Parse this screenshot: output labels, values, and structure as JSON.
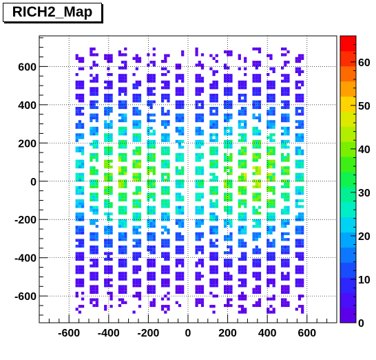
{
  "chart_data": {
    "type": "heatmap",
    "title": "RICH2_Map",
    "xlabel": "",
    "ylabel": "",
    "xlim": [
      -750,
      750
    ],
    "ylim": [
      -740,
      760
    ],
    "zlim": [
      0,
      66
    ],
    "grid": true,
    "x_ticks": [
      -600,
      -400,
      -200,
      0,
      200,
      400,
      600
    ],
    "y_ticks": [
      -600,
      -400,
      -200,
      0,
      200,
      400,
      600
    ],
    "color_ticks": [
      10,
      20,
      30,
      40,
      50,
      60
    ],
    "palette": [
      "#5c00ec",
      "#4a0ef8",
      "#2e26ff",
      "#1a4cff",
      "#0c78ff",
      "#00a6ff",
      "#00d2f4",
      "#00eec6",
      "#00f092",
      "#10f24e",
      "#3cf016",
      "#7af000",
      "#b2ee00",
      "#dcea00",
      "#ffd400",
      "#ffa000",
      "#ff6a00",
      "#ff2e00",
      "#ff0000"
    ],
    "layout": {
      "columns_per_side": 8,
      "column_spacing": 72,
      "inner_column_x": 50,
      "rows_even_columns": 20,
      "rows_odd_columns": 20,
      "row_spacing": 69,
      "pmt_radius": 28
    },
    "hotspots": [
      {
        "x": -330,
        "y": 40,
        "value": 38,
        "sigma": 230
      },
      {
        "x": 340,
        "y": 30,
        "value": 40,
        "sigma": 230
      }
    ],
    "baseline_value": 2
  }
}
